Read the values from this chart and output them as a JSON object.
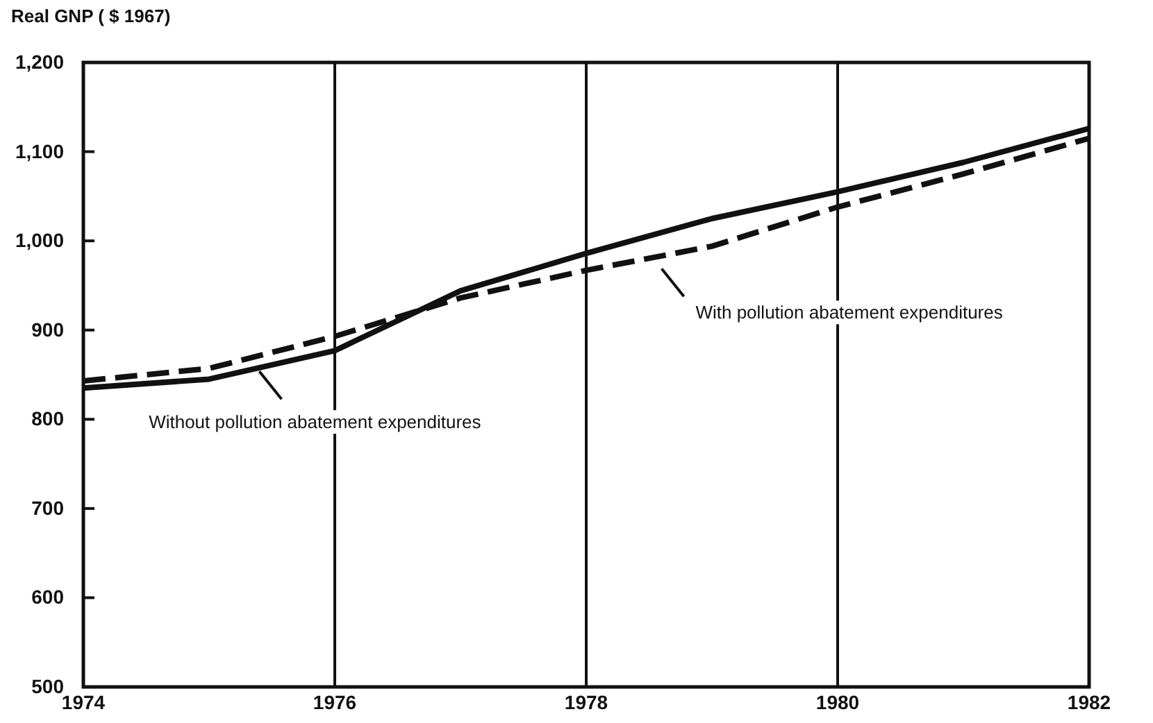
{
  "chart_data": {
    "type": "line",
    "ylabel": "Real GNP ( $ 1967)",
    "x": [
      1974,
      1975,
      1976,
      1977,
      1978,
      1979,
      1980,
      1981,
      1982
    ],
    "xlim": [
      1974,
      1982
    ],
    "xticks": [
      1974,
      1976,
      1978,
      1980,
      1982
    ],
    "ylim": [
      500,
      1200
    ],
    "yticks": [
      500,
      600,
      700,
      800,
      900,
      {
        "value": 1000,
        "label": "1,000"
      },
      {
        "value": 1100,
        "label": "1,100"
      },
      {
        "value": 1200,
        "label": "1,200"
      }
    ],
    "grid": "x",
    "series": [
      {
        "color": "#111111",
        "line_style": "solid",
        "values": [
          835,
          845,
          877,
          944,
          986,
          1025,
          1055,
          1088,
          1126
        ]
      },
      {
        "color": "#111111",
        "line_style": "dashed",
        "values": [
          843,
          857,
          893,
          936,
          967,
          994,
          1038,
          1075,
          1115
        ]
      }
    ],
    "annotations": [
      {
        "text": "Without pollution abatement expenditures",
        "x": 1975.4,
        "y": 860
      },
      {
        "text": "With pollution abatement expenditures",
        "x": 1978.6,
        "y": 975
      }
    ]
  }
}
